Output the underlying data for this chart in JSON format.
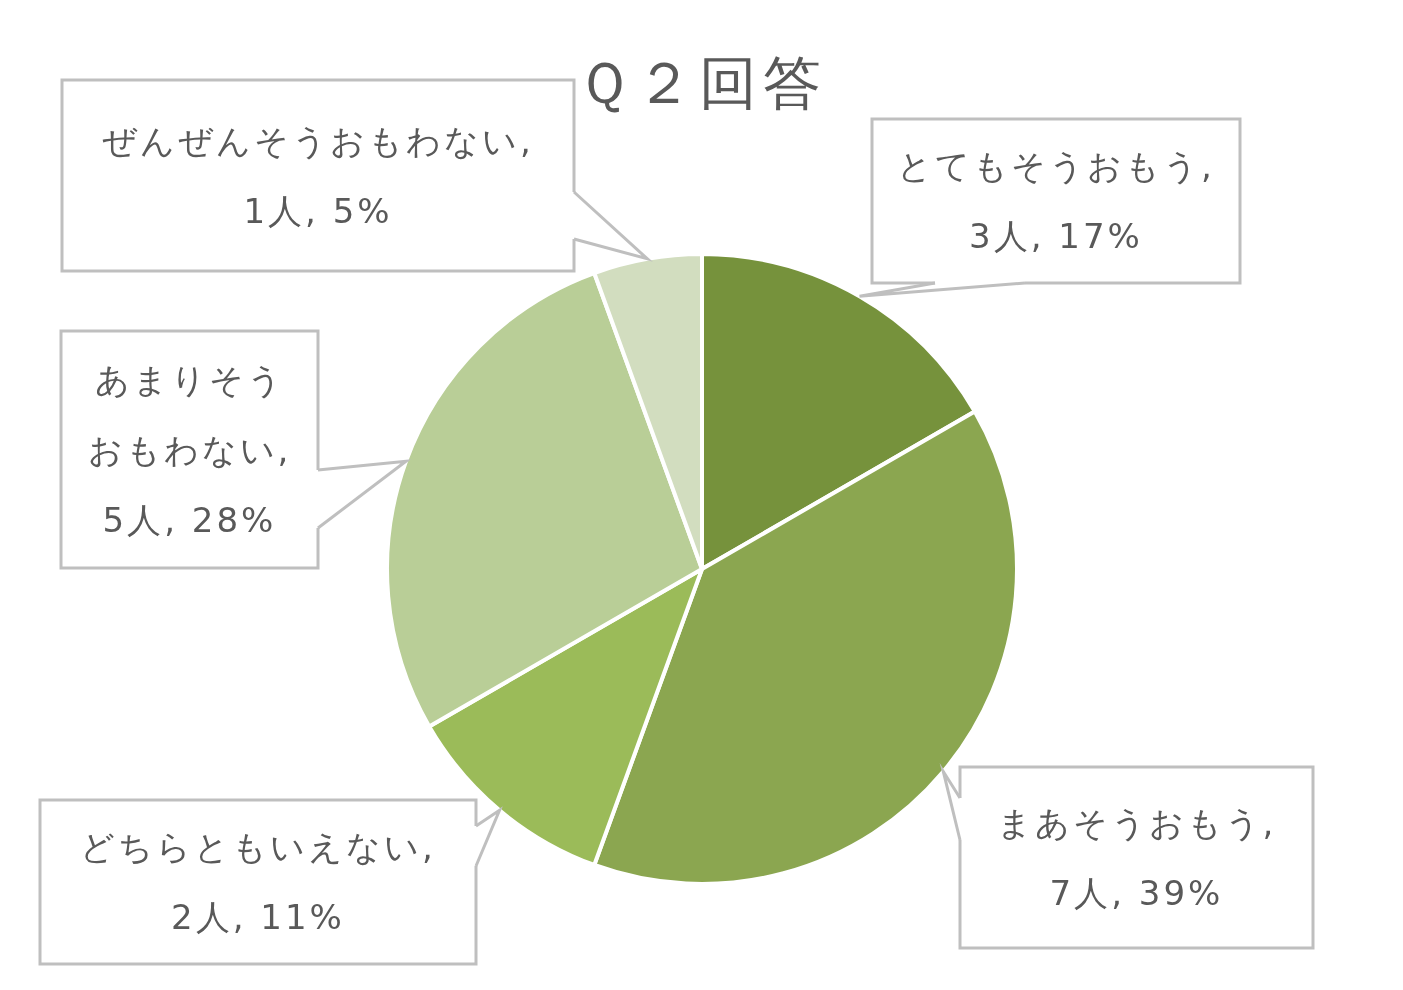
{
  "chart_data": {
    "type": "pie",
    "title": "Ｑ２回答",
    "categories": [
      null,
      null,
      null,
      null,
      null
    ],
    "values": [
      3,
      7,
      2,
      5,
      1
    ],
    "value_labels": [
      "とてもそうおもう, 3人, 17%",
      "まあそうおもう, 7人, 39%",
      "どちらともいえない, 2人, 11%",
      "あまりそうおもわない, 5人, 28%",
      "ぜんぜんそうおもわない, 1人, 5%"
    ],
    "colors": [
      "#76923c",
      "#8ba650",
      "#9bbb59",
      "#b9ce97",
      "#d2ddbf"
    ]
  }
}
